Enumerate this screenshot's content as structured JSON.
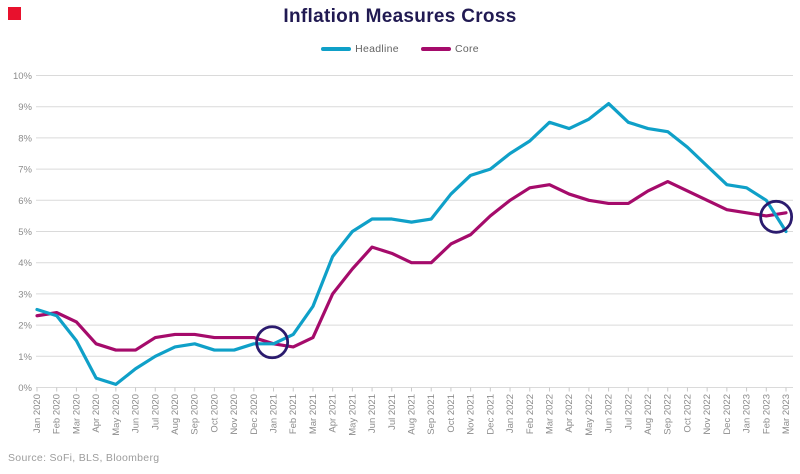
{
  "title": "Inflation Measures Cross",
  "source": "Source: SoFi, BLS, Bloomberg",
  "colors": {
    "headline": "#0fa0c8",
    "core": "#a50b6b",
    "title": "#211a52",
    "annotation": "#2b1b6e",
    "badge": "#e8112d",
    "axis_text": "#8c8c8c",
    "gridline": "#dadada"
  },
  "legend": {
    "items": [
      {
        "label": "Headline",
        "color": "#0fa0c8"
      },
      {
        "label": "Core",
        "color": "#a50b6b"
      }
    ],
    "position": "top-center"
  },
  "chart_data": {
    "type": "line",
    "title": "Inflation Measures Cross",
    "xlabel": "",
    "ylabel": "",
    "ylim": [
      0,
      10
    ],
    "yticks": [
      "0%",
      "1%",
      "2%",
      "3%",
      "4%",
      "5%",
      "6%",
      "7%",
      "8%",
      "9%",
      "10%"
    ],
    "grid": "horizontal",
    "legend_position": "top",
    "x": [
      "Jan 2020",
      "Feb 2020",
      "Mar 2020",
      "Apr 2020",
      "May 2020",
      "Jun 2020",
      "Jul 2020",
      "Aug 2020",
      "Sep 2020",
      "Oct 2020",
      "Nov 2020",
      "Dec 2020",
      "Jan 2021",
      "Feb 2021",
      "Mar 2021",
      "Apr 2021",
      "May 2021",
      "Jun 2021",
      "Jul 2021",
      "Aug 2021",
      "Sep 2021",
      "Oct 2021",
      "Nov 2021",
      "Dec 2021",
      "Jan 2022",
      "Feb 2022",
      "Mar 2022",
      "Apr 2022",
      "May 2022",
      "Jun 2022",
      "Jul 2022",
      "Aug 2022",
      "Sep 2022",
      "Oct 2022",
      "Nov 2022",
      "Dec 2022",
      "Jan 2023",
      "Feb 2023",
      "Mar 2023"
    ],
    "series": [
      {
        "name": "Headline",
        "color": "#0fa0c8",
        "values": [
          2.5,
          2.3,
          1.5,
          0.3,
          0.1,
          0.6,
          1.0,
          1.3,
          1.4,
          1.2,
          1.2,
          1.4,
          1.4,
          1.7,
          2.6,
          4.2,
          5.0,
          5.4,
          5.4,
          5.3,
          5.4,
          6.2,
          6.8,
          7.0,
          7.5,
          7.9,
          8.5,
          8.3,
          8.6,
          9.1,
          8.5,
          8.3,
          8.2,
          7.7,
          7.1,
          6.5,
          6.4,
          6.0,
          5.0
        ]
      },
      {
        "name": "Core",
        "color": "#a50b6b",
        "values": [
          2.3,
          2.4,
          2.1,
          1.4,
          1.2,
          1.2,
          1.6,
          1.7,
          1.7,
          1.6,
          1.6,
          1.6,
          1.4,
          1.3,
          1.6,
          3.0,
          3.8,
          4.5,
          4.3,
          4.0,
          4.0,
          4.6,
          4.9,
          5.5,
          6.0,
          6.4,
          6.5,
          6.2,
          6.0,
          5.9,
          5.9,
          6.3,
          6.6,
          6.3,
          6.0,
          5.7,
          5.6,
          5.5,
          5.6
        ]
      }
    ],
    "annotations": [
      {
        "shape": "circle",
        "index": 11.93,
        "value": 1.45,
        "radius": 15.5,
        "color": "#2b1b6e",
        "meaning": "cross point Jan 2021"
      },
      {
        "shape": "circle",
        "index": 37.5,
        "value": 5.47,
        "radius": 15.5,
        "color": "#2b1b6e",
        "meaning": "cross point Feb-Mar 2023"
      }
    ]
  }
}
